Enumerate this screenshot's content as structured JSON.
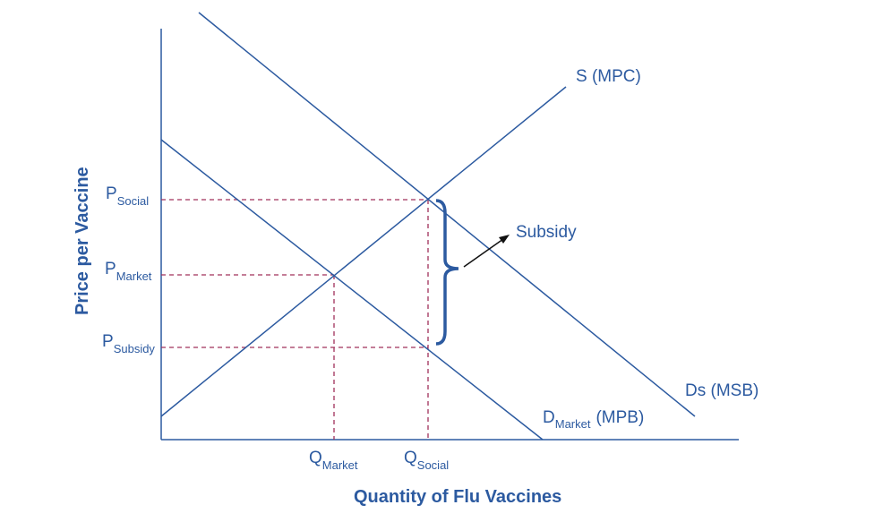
{
  "diagram": {
    "y_axis_title": "Price per Vaccine",
    "x_axis_title": "Quantity of Flu Vaccines",
    "curves": {
      "supply": "S (MPC)",
      "social_demand": "Ds (MSB)",
      "market_demand_main": "D",
      "market_demand_sub": "Market",
      "market_demand_suffix": "(MPB)"
    },
    "price_labels": [
      {
        "main": "P",
        "sub": "Social"
      },
      {
        "main": "P",
        "sub": "Market"
      },
      {
        "main": "P",
        "sub": "Subsidy"
      }
    ],
    "quantity_labels": [
      {
        "main": "Q",
        "sub": "Market"
      },
      {
        "main": "Q",
        "sub": "Social"
      }
    ],
    "annotation": "Subsidy",
    "colors": {
      "primary": "#2c5aa0",
      "guide": "#a0305a",
      "arrow": "#111111"
    }
  }
}
